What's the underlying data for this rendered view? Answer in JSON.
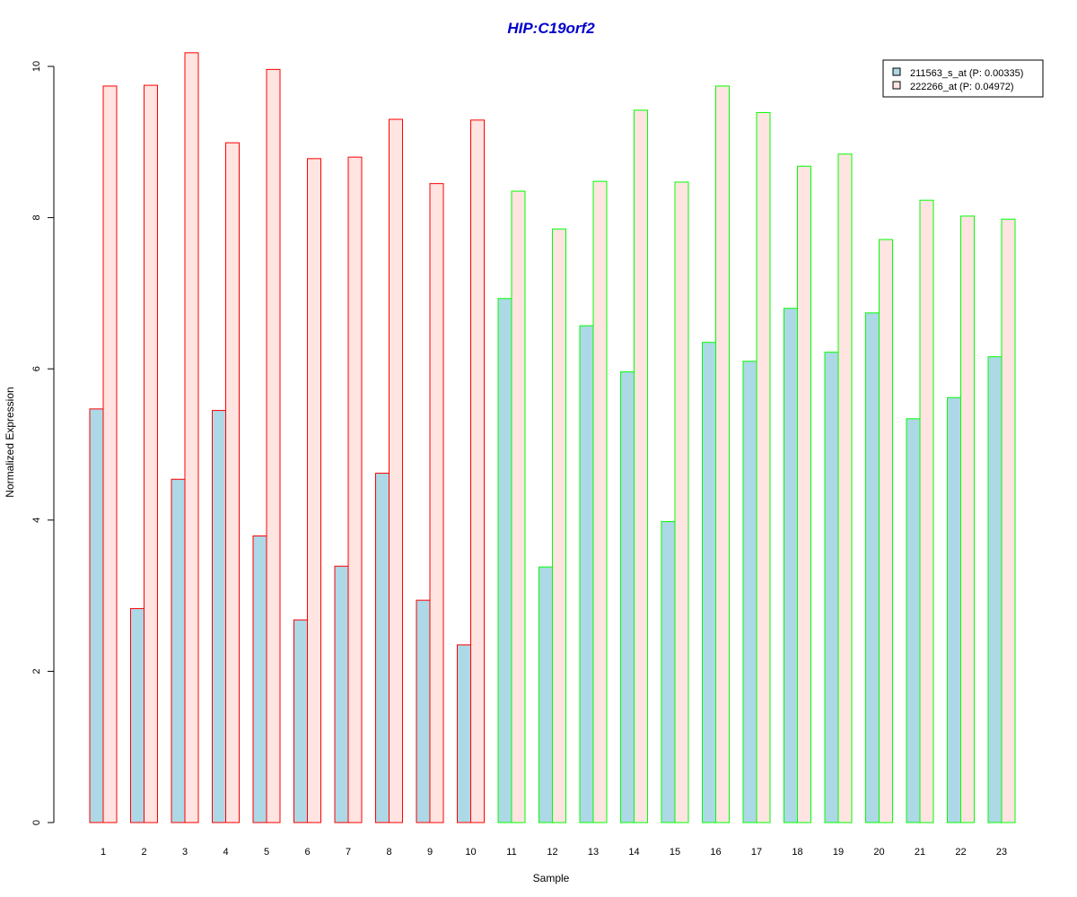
{
  "chart_data": {
    "type": "bar",
    "title": "HIP:C19orf2",
    "xlabel": "Sample",
    "ylabel": "Normalized Expression",
    "ylim": [
      0,
      10
    ],
    "yticks": [
      0,
      2,
      4,
      6,
      8,
      10
    ],
    "categories": [
      "1",
      "2",
      "3",
      "4",
      "5",
      "6",
      "7",
      "8",
      "9",
      "10",
      "11",
      "12",
      "13",
      "14",
      "15",
      "16",
      "17",
      "18",
      "19",
      "20",
      "21",
      "22",
      "23"
    ],
    "series": [
      {
        "name": "211563_s_at (P: 0.00335)",
        "fill": "#add8e6",
        "values": [
          5.47,
          2.83,
          4.54,
          5.45,
          3.79,
          2.68,
          3.39,
          4.62,
          2.94,
          2.35,
          6.93,
          3.38,
          6.57,
          5.96,
          3.98,
          6.35,
          6.1,
          6.8,
          6.22,
          6.74,
          5.34,
          5.62,
          6.16
        ]
      },
      {
        "name": "222266_at (P: 0.04972)",
        "fill": "#ffe4e1",
        "values": [
          9.74,
          9.75,
          10.18,
          8.99,
          9.96,
          8.78,
          8.8,
          9.3,
          8.45,
          9.29,
          8.35,
          7.85,
          8.48,
          9.42,
          8.47,
          9.74,
          9.39,
          8.68,
          8.84,
          7.71,
          8.23,
          8.02,
          7.98
        ]
      }
    ],
    "group_border_colors": [
      "#ff0000",
      "#ff0000",
      "#ff0000",
      "#ff0000",
      "#ff0000",
      "#ff0000",
      "#ff0000",
      "#ff0000",
      "#ff0000",
      "#ff0000",
      "#00ff00",
      "#00ff00",
      "#00ff00",
      "#00ff00",
      "#00ff00",
      "#00ff00",
      "#00ff00",
      "#00ff00",
      "#00ff00",
      "#00ff00",
      "#00ff00",
      "#00ff00",
      "#00ff00"
    ],
    "title_color": "#0000cd",
    "legend_position": "top-right",
    "grid": false
  }
}
